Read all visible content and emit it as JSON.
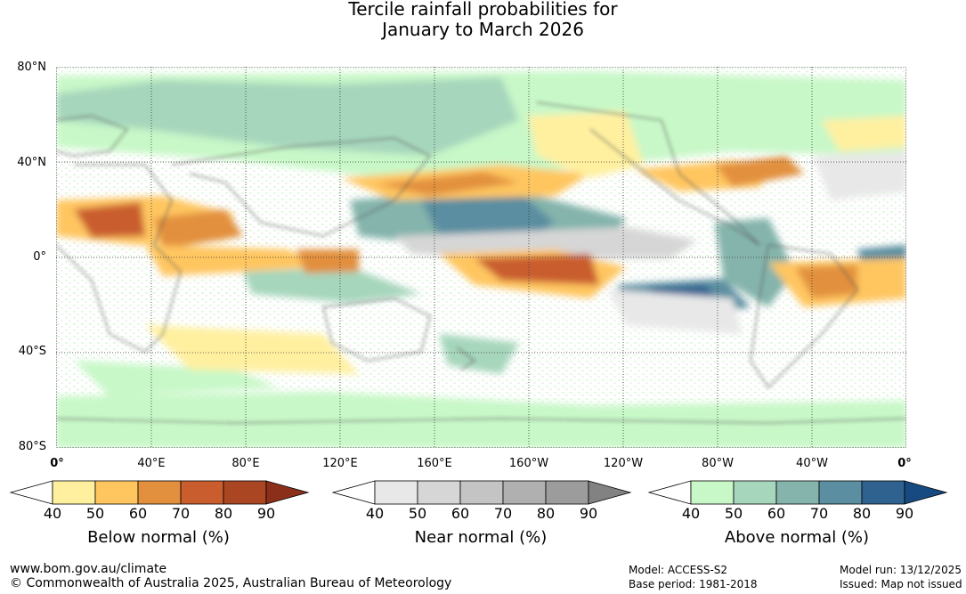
{
  "header": {
    "title_line1": "Tercile rainfall probabilities for",
    "title_line2": "January to March 2026"
  },
  "axes": {
    "lat_labels": [
      "80°N",
      "40°N",
      "0°",
      "40°S",
      "80°S"
    ],
    "lon_labels": [
      "0°",
      "40°E",
      "80°E",
      "120°E",
      "160°E",
      "160°W",
      "120°W",
      "80°W",
      "40°W",
      "0°"
    ]
  },
  "legend": {
    "below": {
      "title": "Below normal (%)",
      "ticks": [
        "40",
        "50",
        "60",
        "70",
        "80",
        "90"
      ],
      "colors": [
        "#ffffff",
        "#fff0a0",
        "#ffc660",
        "#e2903e",
        "#c95d2e",
        "#ab4623",
        "#8c2f1a"
      ]
    },
    "near": {
      "title": "Near normal (%)",
      "ticks": [
        "40",
        "50",
        "60",
        "70",
        "80",
        "90"
      ],
      "colors": [
        "#ffffff",
        "#e8e8e8",
        "#d6d6d6",
        "#c4c4c4",
        "#b0b0b0",
        "#9c9c9c",
        "#828282"
      ]
    },
    "above": {
      "title": "Above normal (%)",
      "ticks": [
        "40",
        "50",
        "60",
        "70",
        "80",
        "90"
      ],
      "colors": [
        "#ffffff",
        "#c8f8c8",
        "#a6d6bc",
        "#84b4ac",
        "#5a8ea0",
        "#306290",
        "#164a80"
      ]
    }
  },
  "footer": {
    "website": "www.bom.gov.au/climate",
    "copyright": "© Commonwealth of Australia 2025, Australian Bureau of Meteorology",
    "model": "Model: ACCESS-S2",
    "base_period": "Base period: 1981-2018",
    "model_run": "Model run: 13/12/2025",
    "issued": "Issued: Map not issued"
  }
}
